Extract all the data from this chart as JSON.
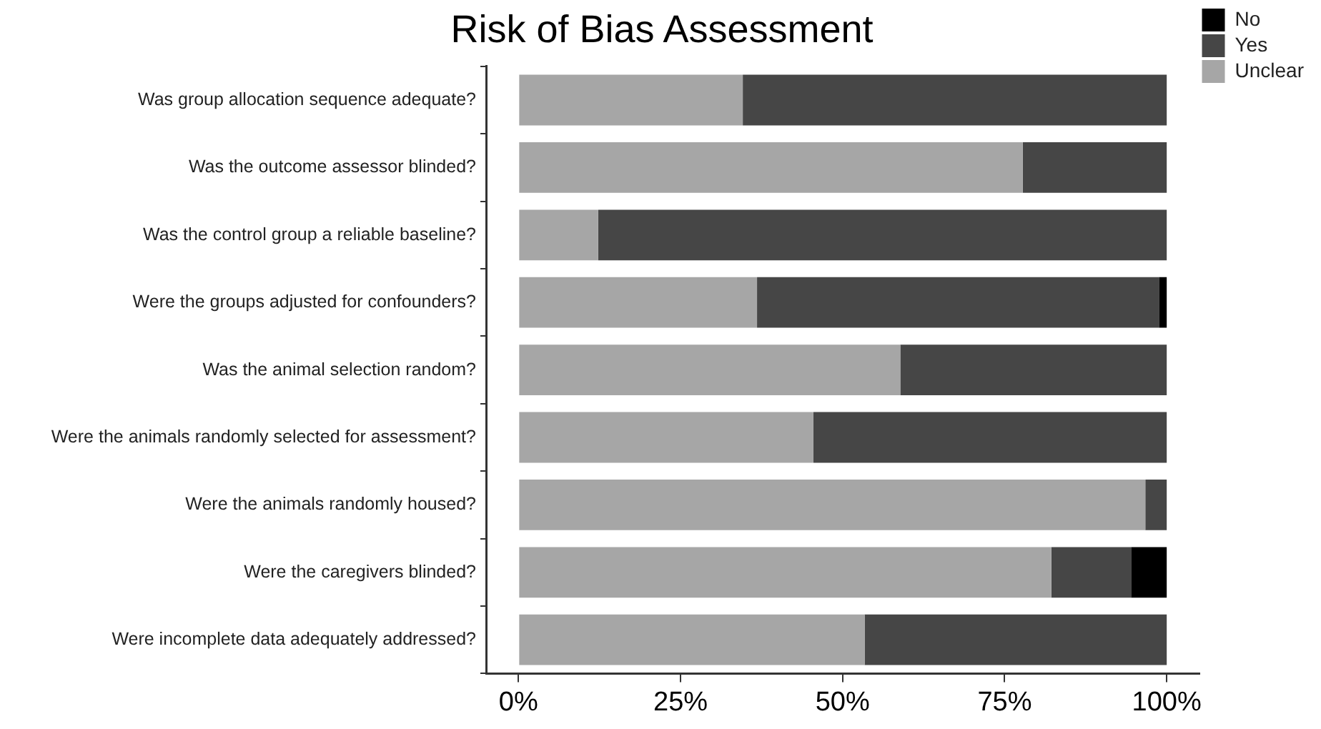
{
  "chart_data": {
    "type": "bar",
    "title": "Risk of Bias Assessment",
    "orientation": "horizontal",
    "stacked": true,
    "categories": [
      "Was group allocation sequence adequate?",
      "Was the outcome assessor blinded?",
      "Was the control group a reliable baseline?",
      "Were the groups adjusted for confounders?",
      "Was the animal selection random?",
      "Were the animals randomly selected for assessment?",
      "Were the animals randomly housed?",
      "Were the caregivers blinded?",
      "Were incomplete data adequately addressed?"
    ],
    "series": [
      {
        "name": "Unclear",
        "color": "#a6a6a6",
        "values": [
          34.6,
          77.8,
          12.3,
          36.8,
          58.9,
          45.5,
          96.7,
          82.2,
          53.4
        ]
      },
      {
        "name": "Yes",
        "color": "#464646",
        "values": [
          65.4,
          22.2,
          87.7,
          62.0,
          41.1,
          54.5,
          3.3,
          12.3,
          46.6
        ]
      },
      {
        "name": "No",
        "color": "#000000",
        "values": [
          0,
          0,
          0,
          1.2,
          0,
          0,
          0,
          5.5,
          0
        ]
      }
    ],
    "xlim": [
      -5,
      105
    ],
    "xticks": [
      {
        "value": 0,
        "label": "0%"
      },
      {
        "value": 25,
        "label": "25%"
      },
      {
        "value": 50,
        "label": "50%"
      },
      {
        "value": 75,
        "label": "75%"
      },
      {
        "value": 100,
        "label": "100%"
      }
    ],
    "grid": false,
    "legend": "top right"
  }
}
